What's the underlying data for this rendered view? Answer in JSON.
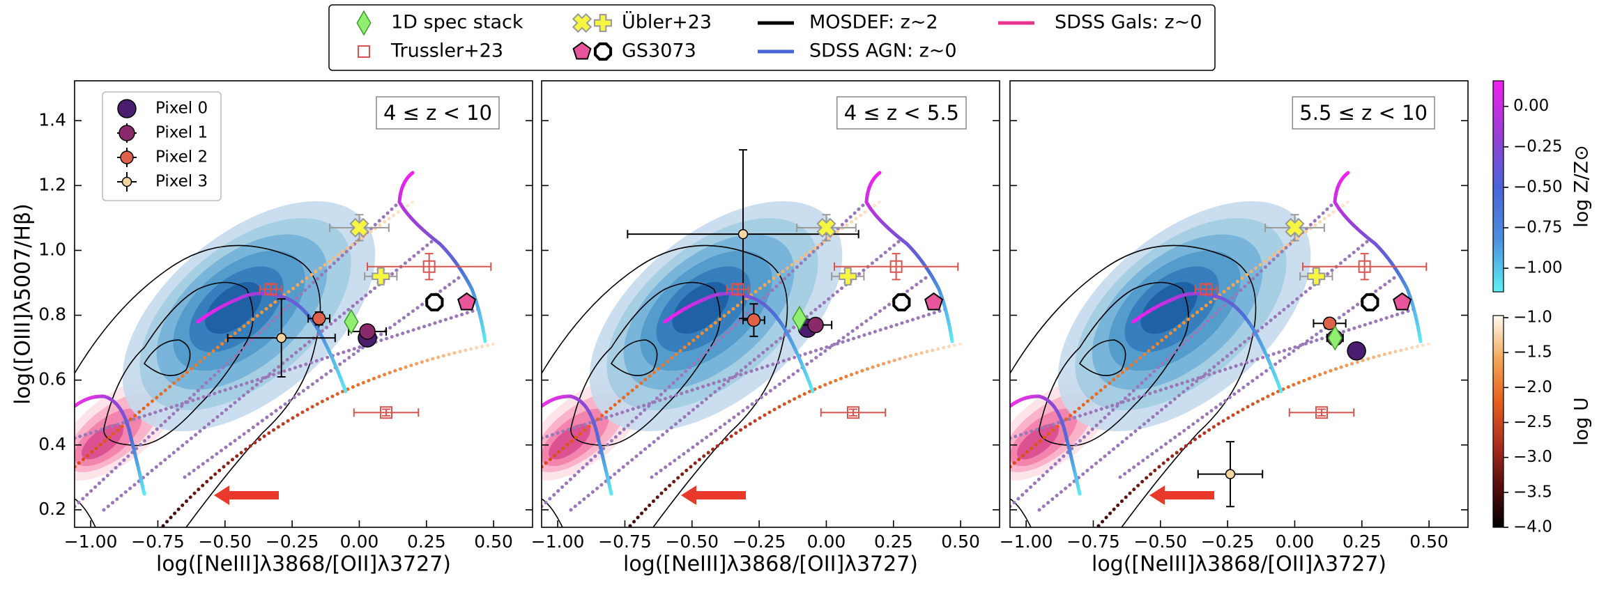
{
  "figure_legend": [
    {
      "label": "1D spec stack",
      "marker": "diamond",
      "color": "#90ee70"
    },
    {
      "label": "Trussler+23",
      "marker": "square-open",
      "color": "#d9534f"
    },
    {
      "label": "Übler+23",
      "marker": "xcircle+plus",
      "color": "#f5f542"
    },
    {
      "label": "GS3073",
      "marker": "pentagon+octagon-open",
      "color": "#e8559a"
    },
    {
      "label": "MOSDEF: z~2",
      "marker": "line",
      "color": "#000000"
    },
    {
      "label": "SDSS AGN: z~0",
      "marker": "line",
      "color": "#4a63d8"
    },
    {
      "label": "SDSS Gals: z~0",
      "marker": "line",
      "color": "#e8338f"
    }
  ],
  "chart_data": [
    {
      "type": "scatter",
      "label": "4 ≤ z < 10",
      "xlabel": "log([NeIII]λ3868/[OII]λ3727)",
      "ylabel": "log([OIII]λ5007/Hβ)",
      "xlim": [
        -1.06,
        0.645
      ],
      "ylim": [
        0.146,
        1.523
      ],
      "xticks": [
        {
          "value": -1,
          "label": "−1.00"
        },
        {
          "value": -0.75,
          "label": "−0.75"
        },
        {
          "value": -0.5,
          "label": "−0.50"
        },
        {
          "value": -0.25,
          "label": "−0.25"
        },
        {
          "value": 0,
          "label": "0.00"
        },
        0.25,
        {
          "value": 0.5,
          "label": "0.50"
        }
      ],
      "yticks": [
        0.2,
        0.4,
        0.6,
        0.8,
        {
          "value": 1,
          "label": "1.0"
        },
        1.2,
        1.4
      ],
      "ytick_labels": true,
      "legend": "upper left",
      "series": [
        {
          "name": "Pixel 0",
          "marker": "circle-xl",
          "color": "#4b1d6e",
          "x": [
            0.03
          ],
          "y": [
            0.73
          ]
        },
        {
          "name": "Pixel 1",
          "marker": "circle-l",
          "color": "#8b2a6b",
          "ecolor": "#000000",
          "x": [
            0.03
          ],
          "y": [
            0.75
          ],
          "xerr": [
            0.07
          ],
          "yerr": [
            0.02
          ]
        },
        {
          "name": "Pixel 2",
          "marker": "circle-m",
          "color": "#e0614a",
          "ecolor": "#000000",
          "x": [
            -0.15
          ],
          "y": [
            0.79
          ],
          "xerr": [
            0.04
          ],
          "yerr": [
            0.02
          ]
        },
        {
          "name": "Pixel 3",
          "marker": "circle-s",
          "color": "#f5d5a0",
          "ecolor": "#000000",
          "x": [
            -0.29
          ],
          "y": [
            0.73
          ],
          "xerr": [
            0.2
          ],
          "yerr": [
            0.12
          ]
        },
        {
          "marker": "diamond",
          "color": "#90ee70",
          "x": [
            -0.03
          ],
          "y": [
            0.78
          ]
        },
        {
          "marker": "square-open",
          "color": "#d9534f",
          "ecolor": "#d9534f",
          "x": [
            0.26,
            -0.33,
            0.1
          ],
          "y": [
            0.95,
            0.88,
            0.5
          ],
          "xerr": [
            0.23,
            0.04,
            0.12
          ],
          "yerr": [
            0.04,
            0.015,
            0.01
          ]
        },
        {
          "marker": "xcircle",
          "color": "#f5f542",
          "ecolor": "#999999",
          "x": [
            0
          ],
          "y": [
            1.07
          ],
          "xerr": [
            0.11
          ],
          "yerr": [
            0.04
          ]
        },
        {
          "marker": "plus",
          "color": "#f5f542",
          "ecolor": "#999999",
          "x": [
            0.08
          ],
          "y": [
            0.92
          ],
          "xerr": [
            0.06
          ],
          "yerr": [
            0.02
          ]
        },
        {
          "marker": "octagon-open",
          "color": "#ffffff",
          "x": [
            0.28
          ],
          "y": [
            0.84
          ]
        },
        {
          "marker": "pentagon",
          "color": "#e8559a",
          "x": [
            0.4
          ],
          "y": [
            0.84
          ]
        }
      ]
    },
    {
      "type": "scatter",
      "label": "4 ≤ z < 5.5",
      "xlabel": "log([NeIII]λ3868/[OII]λ3727)",
      "xlim": [
        -1.06,
        0.645
      ],
      "ylim": [
        0.146,
        1.523
      ],
      "xticks": [
        {
          "value": -1,
          "label": "−1.00"
        },
        {
          "value": -0.75,
          "label": "−0.75"
        },
        {
          "value": -0.5,
          "label": "−0.50"
        },
        {
          "value": -0.25,
          "label": "−0.25"
        },
        {
          "value": 0,
          "label": "0.00"
        },
        0.25,
        {
          "value": 0.5,
          "label": "0.50"
        }
      ],
      "yticks": [
        0.2,
        0.4,
        0.6,
        0.8,
        1,
        1.2,
        1.4
      ],
      "ytick_labels": false,
      "series": [
        {
          "marker": "circle-xl",
          "color": "#4b1d6e",
          "x": [
            -0.07
          ],
          "y": [
            0.76
          ]
        },
        {
          "marker": "circle-l",
          "color": "#8b2a6b",
          "ecolor": "#000000",
          "x": [
            -0.04
          ],
          "y": [
            0.77
          ],
          "xerr": [
            0.06
          ],
          "yerr": [
            0.01
          ]
        },
        {
          "marker": "circle-m",
          "color": "#e0614a",
          "ecolor": "#000000",
          "x": [
            -0.27
          ],
          "y": [
            0.785
          ],
          "xerr": [
            0.04
          ],
          "yerr": [
            0.05
          ]
        },
        {
          "marker": "circle-s",
          "color": "#f5d5a0",
          "ecolor": "#000000",
          "x": [
            -0.31
          ],
          "y": [
            1.05
          ],
          "xerr": [
            0.43
          ],
          "yerr": [
            0.26
          ]
        },
        {
          "marker": "diamond",
          "color": "#90ee70",
          "x": [
            -0.1
          ],
          "y": [
            0.79
          ]
        },
        {
          "marker": "square-open",
          "color": "#d9534f",
          "ecolor": "#d9534f",
          "x": [
            0.26,
            -0.33,
            0.1
          ],
          "y": [
            0.95,
            0.88,
            0.5
          ],
          "xerr": [
            0.23,
            0.04,
            0.12
          ],
          "yerr": [
            0.04,
            0.015,
            0.01
          ]
        },
        {
          "marker": "xcircle",
          "color": "#f5f542",
          "ecolor": "#999999",
          "x": [
            0
          ],
          "y": [
            1.07
          ],
          "xerr": [
            0.11
          ],
          "yerr": [
            0.04
          ]
        },
        {
          "marker": "plus",
          "color": "#f5f542",
          "ecolor": "#999999",
          "x": [
            0.08
          ],
          "y": [
            0.92
          ],
          "xerr": [
            0.06
          ],
          "yerr": [
            0.02
          ]
        },
        {
          "marker": "octagon-open",
          "color": "#ffffff",
          "x": [
            0.28
          ],
          "y": [
            0.84
          ]
        },
        {
          "marker": "pentagon",
          "color": "#e8559a",
          "x": [
            0.4
          ],
          "y": [
            0.84
          ]
        }
      ]
    },
    {
      "type": "scatter",
      "label": "5.5 ≤ z < 10",
      "xlabel": "log([NeIII]λ3868/[OII]λ3727)",
      "xlim": [
        -1.06,
        0.645
      ],
      "ylim": [
        0.146,
        1.523
      ],
      "xticks": [
        {
          "value": -1,
          "label": "−1.00"
        },
        {
          "value": -0.75,
          "label": "−0.75"
        },
        {
          "value": -0.5,
          "label": "−0.50"
        },
        {
          "value": -0.25,
          "label": "−0.25"
        },
        {
          "value": 0,
          "label": "0.00"
        },
        0.25,
        {
          "value": 0.5,
          "label": "0.50"
        }
      ],
      "yticks": [
        0.2,
        0.4,
        0.6,
        0.8,
        1,
        1.2,
        1.4
      ],
      "ytick_labels": false,
      "series": [
        {
          "marker": "circle-xl",
          "color": "#4b1d6e",
          "x": [
            0.23
          ],
          "y": [
            0.69
          ]
        },
        {
          "marker": "circle-l",
          "color": "#8b2a6b",
          "ecolor": "#000000",
          "x": [
            0.15
          ],
          "y": [
            0.73
          ],
          "xerr": [
            0.03
          ],
          "yerr": [
            0.01
          ]
        },
        {
          "marker": "circle-m",
          "color": "#e0614a",
          "ecolor": "#000000",
          "x": [
            0.13
          ],
          "y": [
            0.775
          ],
          "xerr": [
            0.06
          ],
          "yerr": [
            0.015
          ]
        },
        {
          "marker": "circle-s",
          "color": "#f5d5a0",
          "ecolor": "#000000",
          "x": [
            -0.24
          ],
          "y": [
            0.31
          ],
          "xerr": [
            0.12
          ],
          "yerr": [
            0.1
          ]
        },
        {
          "marker": "diamond",
          "color": "#90ee70",
          "x": [
            0.15
          ],
          "y": [
            0.73
          ]
        },
        {
          "marker": "square-open",
          "color": "#d9534f",
          "ecolor": "#d9534f",
          "x": [
            0.26,
            -0.33,
            0.1
          ],
          "y": [
            0.95,
            0.88,
            0.5
          ],
          "xerr": [
            0.23,
            0.04,
            0.12
          ],
          "yerr": [
            0.04,
            0.015,
            0.01
          ]
        },
        {
          "marker": "xcircle",
          "color": "#f5f542",
          "ecolor": "#999999",
          "x": [
            0
          ],
          "y": [
            1.07
          ],
          "xerr": [
            0.11
          ],
          "yerr": [
            0.04
          ]
        },
        {
          "marker": "plus",
          "color": "#f5f542",
          "ecolor": "#999999",
          "x": [
            0.08
          ],
          "y": [
            0.92
          ],
          "xerr": [
            0.06
          ],
          "yerr": [
            0.02
          ]
        },
        {
          "marker": "octagon-open",
          "color": "#ffffff",
          "x": [
            0.28
          ],
          "y": [
            0.84
          ]
        },
        {
          "marker": "pentagon",
          "color": "#e8559a",
          "x": [
            0.4
          ],
          "y": [
            0.84
          ]
        }
      ]
    },
    {
      "type": "colorbar",
      "label": "log Z/Z⊙",
      "lim": [
        -1.146,
        0.158
      ],
      "ticks": [
        {
          "value": 0,
          "label": "0.00"
        },
        {
          "value": -0.25,
          "label": "−0.25"
        },
        {
          "value": -0.5,
          "label": "−0.50"
        },
        {
          "value": -0.75,
          "label": "−0.75"
        },
        {
          "value": -1,
          "label": "−1.00"
        }
      ],
      "colors": [
        "#5ef0f5",
        "#4a8fe0",
        "#4a63d8",
        "#9b3ed6",
        "#f020f0"
      ]
    },
    {
      "type": "colorbar",
      "label": "log U",
      "lim": [
        -4,
        -0.97
      ],
      "ticks": [
        {
          "value": -1,
          "label": "−1.0"
        },
        {
          "value": -1.5,
          "label": "−1.5"
        },
        {
          "value": -2,
          "label": "−2.0"
        },
        {
          "value": -2.5,
          "label": "−2.5"
        },
        {
          "value": -3,
          "label": "−3.0"
        },
        {
          "value": -3.5,
          "label": "−3.5"
        },
        {
          "value": -4,
          "label": "−4.0"
        }
      ],
      "colors": [
        "#000000",
        "#5a0d0d",
        "#b0301f",
        "#e8601c",
        "#f5a85a",
        "#fffaf0"
      ]
    }
  ]
}
